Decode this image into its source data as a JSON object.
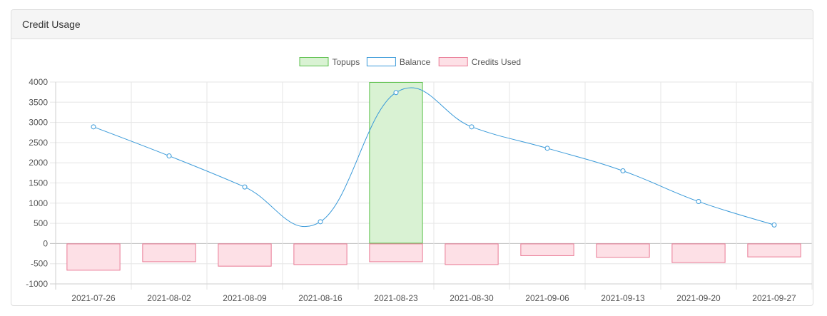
{
  "panel": {
    "title": "Credit Usage"
  },
  "chart_data": {
    "type": "bar",
    "categories": [
      "2021-07-26",
      "2021-08-02",
      "2021-08-09",
      "2021-08-16",
      "2021-08-23",
      "2021-08-30",
      "2021-09-06",
      "2021-09-13",
      "2021-09-20",
      "2021-09-27"
    ],
    "series": [
      {
        "name": "Topups",
        "type": "bar",
        "values": [
          0,
          0,
          0,
          0,
          4000,
          0,
          0,
          0,
          0,
          0
        ],
        "fill": "#d9f2d3",
        "stroke": "#5cc04c"
      },
      {
        "name": "Balance",
        "type": "line",
        "values": [
          2890,
          2170,
          1400,
          540,
          3740,
          2890,
          2360,
          1800,
          1040,
          460
        ],
        "fill": "#ffffff",
        "stroke": "#3a9ad9"
      },
      {
        "name": "Credits Used",
        "type": "bar",
        "values": [
          -670,
          -460,
          -570,
          -530,
          -460,
          -530,
          -310,
          -350,
          -480,
          -340
        ],
        "fill": "#fde0e6",
        "stroke": "#e97a95"
      }
    ],
    "yticks": [
      4000,
      3500,
      3000,
      2500,
      2000,
      1500,
      1000,
      500,
      0,
      -500,
      -1000
    ],
    "ylim": [
      -1000,
      4000
    ],
    "grid": true,
    "legend_position": "top"
  }
}
